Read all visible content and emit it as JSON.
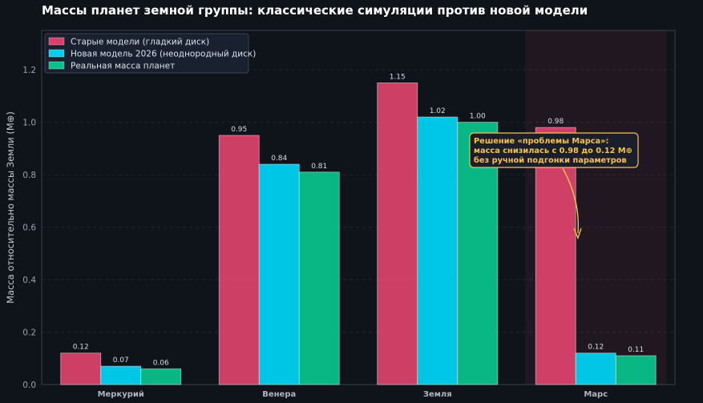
{
  "chart_data": {
    "type": "bar",
    "title": "Массы планет земной группы: классические симуляции против новой модели",
    "ylabel": "Масса относительно массы Земли (M⊕)",
    "xlabel": "",
    "categories": [
      "Меркурий",
      "Венера",
      "Земля",
      "Марс"
    ],
    "ylim": [
      0,
      1.35
    ],
    "yticks": [
      0.0,
      0.2,
      0.4,
      0.6,
      0.8,
      1.0,
      1.2
    ],
    "ytick_labels": [
      "0.0",
      "0.2",
      "0.4",
      "0.6",
      "0.8",
      "1.0",
      "1.2"
    ],
    "grid": true,
    "legend_position": "top-left",
    "series": [
      {
        "name": "Старые модели (гладкий диск)",
        "color": "#d9416a",
        "values": [
          0.12,
          0.95,
          1.15,
          0.98
        ],
        "labels": [
          "0.12",
          "0.95",
          "1.15",
          "0.98"
        ]
      },
      {
        "name": "Новая модель 2026 (неоднородный диск)",
        "color": "#00d0f0",
        "values": [
          0.07,
          0.84,
          1.02,
          0.12
        ],
        "labels": [
          "0.07",
          "0.84",
          "1.02",
          "0.12"
        ]
      },
      {
        "name": "Реальная масса планет",
        "color": "#08c08a",
        "values": [
          0.06,
          0.81,
          1.0,
          0.11
        ],
        "labels": [
          "0.06",
          "0.81",
          "1.00",
          "0.11"
        ]
      }
    ],
    "highlight_category": "Марс",
    "annotation": {
      "lines": [
        "Решение «проблемы Марса»:",
        "масса снизилась с 0.98 до 0.12 M⊕",
        "без ручной подгонки параметров"
      ],
      "color": "#f5c24c"
    }
  }
}
